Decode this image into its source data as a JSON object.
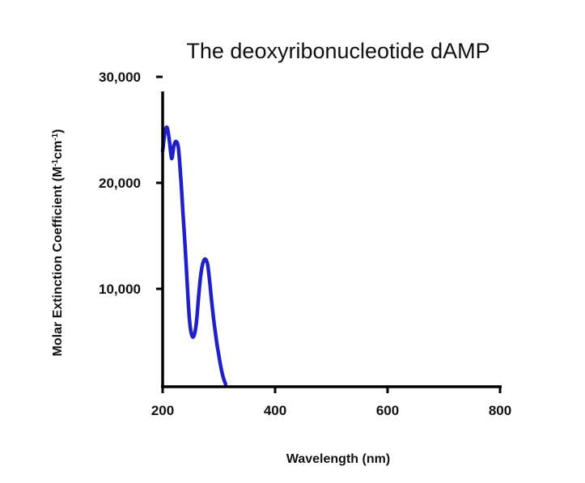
{
  "chart_data": {
    "type": "line",
    "title": "The deoxyribonucleotide dAMP",
    "xlabel": "Wavelength (nm)",
    "ylabel_main": "Molar Extinction Coefficient (M",
    "ylabel_sup1": "-1",
    "ylabel_mid": "cm",
    "ylabel_sup2": "-1",
    "ylabel_end": ")",
    "xlim": [
      200,
      800
    ],
    "ylim": [
      1000,
      30000
    ],
    "x_ticks": [
      200,
      400,
      600,
      800
    ],
    "x_tick_labels": [
      "200",
      "400",
      "600",
      "800"
    ],
    "y_ticks": [
      10000,
      20000,
      30000
    ],
    "y_tick_labels": [
      "10,000",
      "20,000",
      "30,000"
    ],
    "grid": false,
    "legend": "none",
    "colors": {
      "series": "#2020c8",
      "axis": "#000000"
    },
    "series": [
      {
        "x": [
          200,
          204,
          208,
          212,
          216,
          220,
          224,
          228,
          232,
          236,
          240,
          244,
          248,
          252,
          256,
          260,
          264,
          268,
          272,
          276,
          280,
          284,
          288,
          292,
          296,
          300,
          304,
          308,
          312
        ],
        "values": [
          23000,
          24800,
          25200,
          24000,
          22300,
          23500,
          23900,
          23300,
          20700,
          17300,
          14000,
          10200,
          6900,
          5600,
          5600,
          6800,
          9300,
          11400,
          12500,
          12800,
          12300,
          10500,
          8400,
          6600,
          5000,
          3700,
          2500,
          1600,
          1000
        ]
      }
    ]
  }
}
